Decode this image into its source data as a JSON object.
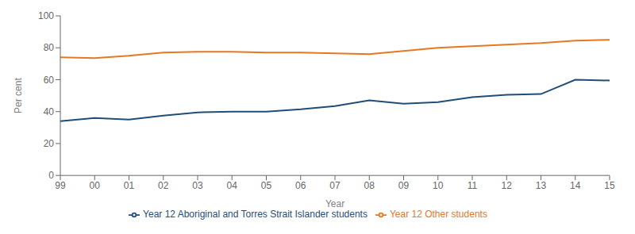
{
  "chart_data": {
    "type": "line",
    "xlabel": "Year",
    "ylabel": "Per cent",
    "categories": [
      "99",
      "00",
      "01",
      "02",
      "03",
      "04",
      "05",
      "06",
      "07",
      "08",
      "09",
      "10",
      "11",
      "12",
      "13",
      "14",
      "15"
    ],
    "series": [
      {
        "name": "Year 12 Aboriginal and Torres Strait Islander students",
        "color": "#1F4E79",
        "values": [
          34.0,
          36.0,
          35.0,
          37.5,
          39.5,
          40.0,
          40.0,
          41.5,
          43.5,
          47.0,
          45.0,
          46.0,
          49.0,
          50.5,
          51.0,
          60.0,
          59.5
        ]
      },
      {
        "name": "Year 12 Other students",
        "color": "#E87722",
        "values": [
          74.0,
          73.5,
          75.0,
          77.0,
          77.5,
          77.5,
          77.0,
          77.0,
          76.5,
          76.0,
          78.0,
          80.0,
          81.0,
          82.0,
          83.0,
          84.5,
          85.0
        ]
      }
    ],
    "ylim": [
      0,
      100
    ],
    "yticks": [
      0,
      20,
      40,
      60,
      80,
      100
    ],
    "grid": false,
    "legend": "bottom"
  }
}
